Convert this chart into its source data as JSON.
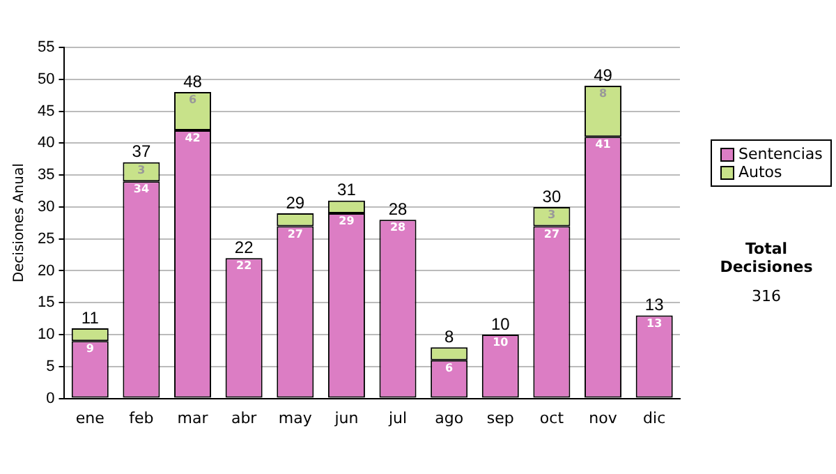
{
  "chart_data": {
    "type": "bar",
    "ylabel": "Decisiones Anual",
    "categories": [
      "ene",
      "feb",
      "mar",
      "abr",
      "may",
      "jun",
      "jul",
      "ago",
      "sep",
      "oct",
      "nov",
      "dic"
    ],
    "stacked": true,
    "ylim": [
      0,
      55
    ],
    "yticks": [
      0,
      5,
      10,
      15,
      20,
      25,
      30,
      35,
      40,
      45,
      50,
      55
    ],
    "grid": "y",
    "legend": "right",
    "series": [
      {
        "name": "Sentencias",
        "color": "#dc7dc4",
        "values": [
          9,
          34,
          42,
          22,
          27,
          29,
          28,
          6,
          10,
          27,
          41,
          13
        ],
        "value_labels": [
          "9",
          "34",
          "42",
          "22",
          "27",
          "29",
          "28",
          "6",
          "10",
          "27",
          "41",
          "13"
        ]
      },
      {
        "name": "Autos",
        "color": "#c8e28a",
        "values": [
          2,
          3,
          6,
          0,
          2,
          2,
          0,
          2,
          0,
          3,
          8,
          0
        ],
        "value_labels": [
          null,
          "3",
          "6",
          null,
          null,
          null,
          null,
          null,
          null,
          "3",
          "8",
          null
        ]
      }
    ],
    "totals": [
      "11",
      "37",
      "48",
      "22",
      "29",
      "31",
      "28",
      "8",
      "10",
      "30",
      "49",
      "13"
    ],
    "annotations": [
      "Total Decisiones",
      "316"
    ]
  }
}
